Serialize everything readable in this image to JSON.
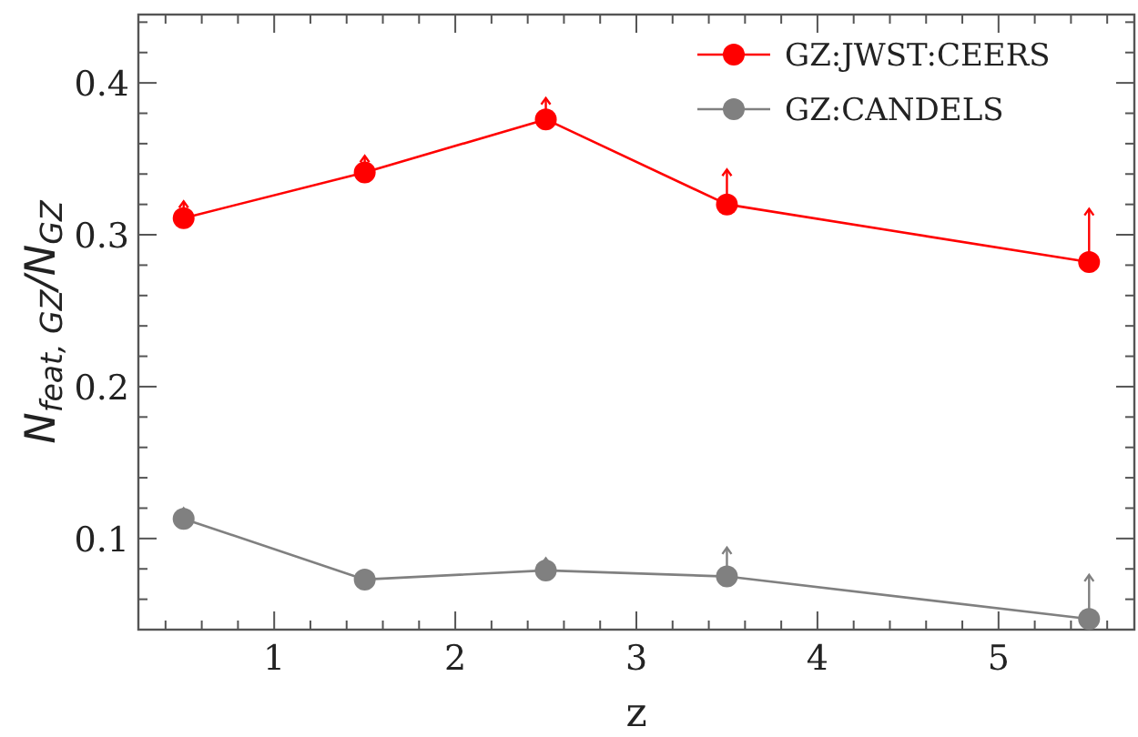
{
  "chart_data": {
    "type": "line",
    "xlabel": "z",
    "ylabel": "N$_{feat, GZ}$/N$_{GZ}$",
    "series": [
      {
        "name": "GZ:JWST:CEERS",
        "color": "#ff0000",
        "x": [
          0.5,
          1.5,
          2.5,
          3.5,
          5.5
        ],
        "values": [
          0.311,
          0.341,
          0.376,
          0.32,
          0.282
        ],
        "errors": [
          [
            0.311,
            0.322
          ],
          [
            0.341,
            0.352
          ],
          [
            0.376,
            0.39
          ],
          [
            0.32,
            0.343
          ],
          [
            0.282,
            0.317
          ]
        ]
      },
      {
        "name": "GZ:CANDELS",
        "color": "#808080",
        "x": [
          0.5,
          1.5,
          2.5,
          3.5,
          5.5
        ],
        "values": [
          0.113,
          0.073,
          0.079,
          0.075,
          0.047
        ],
        "errors": [
          [
            0.113,
            0.12
          ],
          [
            0.073,
            0.077
          ],
          [
            0.079,
            0.087
          ],
          [
            0.075,
            0.094
          ],
          [
            0.047,
            0.076
          ]
        ]
      }
    ],
    "xlim": [
      0.25,
      5.75
    ],
    "xticks": [
      {
        "value": 0.4,
        "label": null
      },
      {
        "value": 0.6,
        "label": null
      },
      {
        "value": 0.8,
        "label": null
      },
      1,
      {
        "value": 1.2,
        "label": null
      },
      {
        "value": 1.4,
        "label": null
      },
      {
        "value": 1.6,
        "label": null
      },
      {
        "value": 1.8,
        "label": null
      },
      2,
      {
        "value": 2.2,
        "label": null
      },
      {
        "value": 2.4,
        "label": null
      },
      {
        "value": 2.6,
        "label": null
      },
      {
        "value": 2.8,
        "label": null
      },
      3,
      {
        "value": 3.2,
        "label": null
      },
      {
        "value": 3.4,
        "label": null
      },
      {
        "value": 3.6,
        "label": null
      },
      {
        "value": 3.8,
        "label": null
      },
      4,
      {
        "value": 4.2,
        "label": null
      },
      {
        "value": 4.4,
        "label": null
      },
      {
        "value": 4.6,
        "label": null
      },
      {
        "value": 4.8,
        "label": null
      },
      5,
      {
        "value": 5.2,
        "label": null
      },
      {
        "value": 5.4,
        "label": null
      },
      {
        "value": 5.6,
        "label": null
      }
    ],
    "ylim": [
      0.04,
      0.445
    ],
    "yticks": [
      {
        "value": 0.06,
        "label": null
      },
      {
        "value": 0.08,
        "label": null
      },
      {
        "value": 0.1,
        "label": "0.1"
      },
      {
        "value": 0.12,
        "label": null
      },
      {
        "value": 0.14,
        "label": null
      },
      {
        "value": 0.16,
        "label": null
      },
      {
        "value": 0.18,
        "label": null
      },
      {
        "value": 0.2,
        "label": "0.2"
      },
      {
        "value": 0.22,
        "label": null
      },
      {
        "value": 0.24,
        "label": null
      },
      {
        "value": 0.26,
        "label": null
      },
      {
        "value": 0.28,
        "label": null
      },
      {
        "value": 0.3,
        "label": "0.3"
      },
      {
        "value": 0.32,
        "label": null
      },
      {
        "value": 0.34,
        "label": null
      },
      {
        "value": 0.36,
        "label": null
      },
      {
        "value": 0.38,
        "label": null
      },
      {
        "value": 0.4,
        "label": "0.4"
      },
      {
        "value": 0.42,
        "label": null
      },
      {
        "value": 0.44,
        "label": null
      }
    ],
    "grid": false,
    "legend": "top right",
    "marker": "circle",
    "line_style": "solid"
  }
}
